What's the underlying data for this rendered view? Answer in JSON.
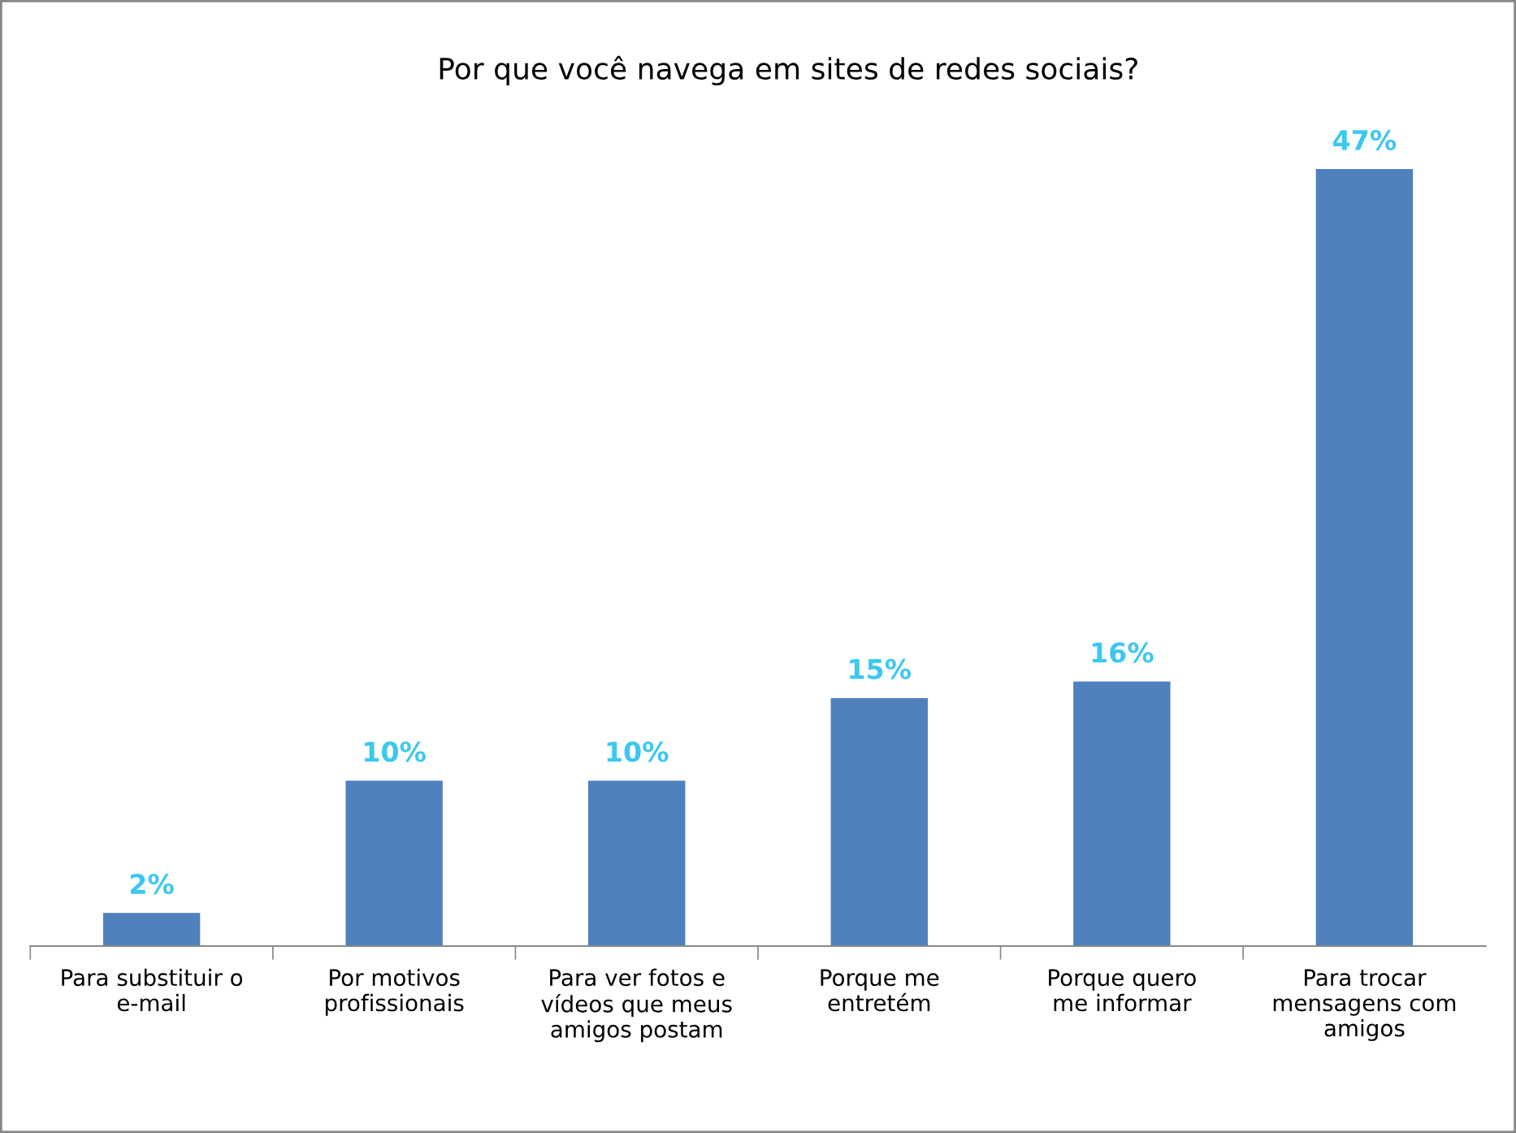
{
  "chart_data": {
    "type": "bar",
    "title": "Por que você navega em sites de redes sociais?",
    "categories": [
      "Para substituir o\ne-mail",
      "Por motivos\nprofissionais",
      "Para ver fotos e\nvídeos que meus\namigos postam",
      "Porque me\nentretém",
      "Porque quero\nme informar",
      "Para trocar\nmensagens com\namigos"
    ],
    "values": [
      2,
      10,
      10,
      15,
      16,
      47
    ],
    "color": "#4f81bd",
    "data_labels": true,
    "value_labels": [
      "2%",
      "10%",
      "10%",
      "15%",
      "16%",
      "47%"
    ],
    "grid": false,
    "legend": false
  }
}
